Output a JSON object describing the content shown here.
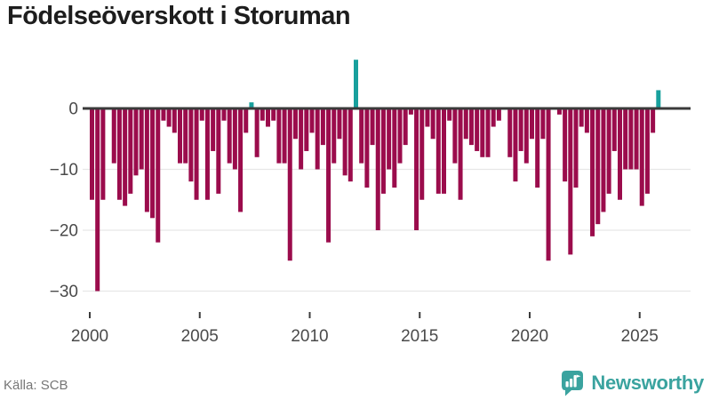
{
  "title": "Födelseöverskott i Storuman",
  "source": "Källa: SCB",
  "brand": {
    "name": "Newsworthy"
  },
  "colors": {
    "negative_bar": "#9b0c4c",
    "positive_bar": "#18a09d",
    "brand_teal": "#3aa39f",
    "zero_line": "#3a3a3a",
    "gridline": "#e7e7e7",
    "axis_text": "#4a4a4a",
    "title_text": "#1d1d1d",
    "source_text": "#767676"
  },
  "chart_data": {
    "type": "bar",
    "title": "Födelseöverskott i Storuman",
    "frequency": "quarterly",
    "start_year": 2000,
    "start_quarter": 1,
    "xlabel": "",
    "ylabel": "",
    "x_ticks": [
      2000,
      2005,
      2010,
      2015,
      2020,
      2025
    ],
    "y_ticks": [
      0,
      -10,
      -20,
      -30
    ],
    "ylim": [
      -33,
      9
    ],
    "grid": true,
    "legend": false,
    "colors": {
      "positive": "#18a09d",
      "negative": "#9b0c4c",
      "gridline": "#e7e7e7",
      "zero_line": "#3a3a3a",
      "axis_text": "#4a4a4a",
      "tick_mark": "#3c3c3c"
    },
    "values": [
      -15,
      -30,
      -15,
      0,
      -9,
      -15,
      -16,
      -14,
      -11,
      -10,
      -17,
      -18,
      -22,
      -2,
      -3,
      -4,
      -9,
      -9,
      -12,
      -15,
      -2,
      -15,
      -7,
      -14,
      -2,
      -9,
      -10,
      -17,
      -4,
      1,
      -8,
      -2,
      -3,
      -2,
      -9,
      -9,
      -25,
      -5,
      -10,
      -7,
      -4,
      -10,
      -6,
      -22,
      -9,
      -5,
      -11,
      -12,
      8,
      -9,
      -13,
      -6,
      -20,
      -14,
      -10,
      -13,
      -9,
      -6,
      -1,
      -20,
      -15,
      -3,
      -5,
      -14,
      -14,
      -2,
      -9,
      -15,
      -5,
      -6,
      -7,
      -8,
      -8,
      -3,
      -2,
      0,
      -8,
      -12,
      -7,
      -9,
      -5,
      -13,
      -5,
      -25,
      0,
      -1,
      -12,
      -24,
      -13,
      -3,
      -4,
      -21,
      -19,
      -17,
      -14,
      -7,
      -15,
      -10,
      -10,
      -10,
      -16,
      -14,
      -4,
      3
    ]
  }
}
